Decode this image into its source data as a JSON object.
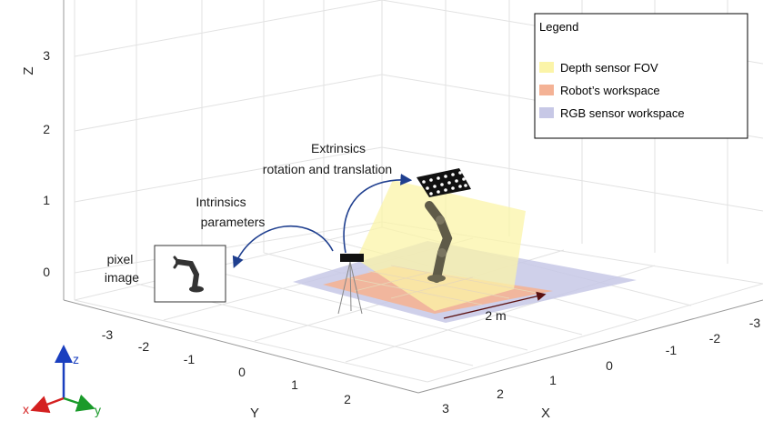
{
  "axes": {
    "z_label": "Z",
    "y_label": "Y",
    "x_label": "X",
    "z_ticks": [
      "3",
      "2",
      "1",
      "0"
    ],
    "y_ticks": [
      "-3",
      "-2",
      "-1",
      "0",
      "1",
      "2"
    ],
    "x_ticks": [
      "3",
      "2",
      "1",
      "0",
      "-1",
      "-2",
      "-3"
    ],
    "grid": true
  },
  "legend": {
    "title": "Legend",
    "placement": "top-right",
    "items": [
      {
        "label": "Depth sensor FOV",
        "color": "#fbf4a8"
      },
      {
        "label": "Robot’s workspace",
        "color": "#f4b295"
      },
      {
        "label": "RGB sensor workspace",
        "color": "#c7c8e6"
      }
    ]
  },
  "annotations": {
    "extrinsics_line1": "Extrinsics",
    "extrinsics_line2": "rotation and translation",
    "intrinsics_line1": "Intrinsics",
    "intrinsics_line2": "parameters",
    "pixel_line1": "pixel",
    "pixel_line2": "image",
    "scale": "2 m"
  },
  "triad": {
    "z": "z",
    "x": "x",
    "y": "y",
    "colors": {
      "z": "#1a3fbf",
      "x": "#d42020",
      "y": "#1a9a2a"
    }
  },
  "colors": {
    "arrow": "#1f3f8f",
    "scale_arrow": "#5a1010"
  }
}
